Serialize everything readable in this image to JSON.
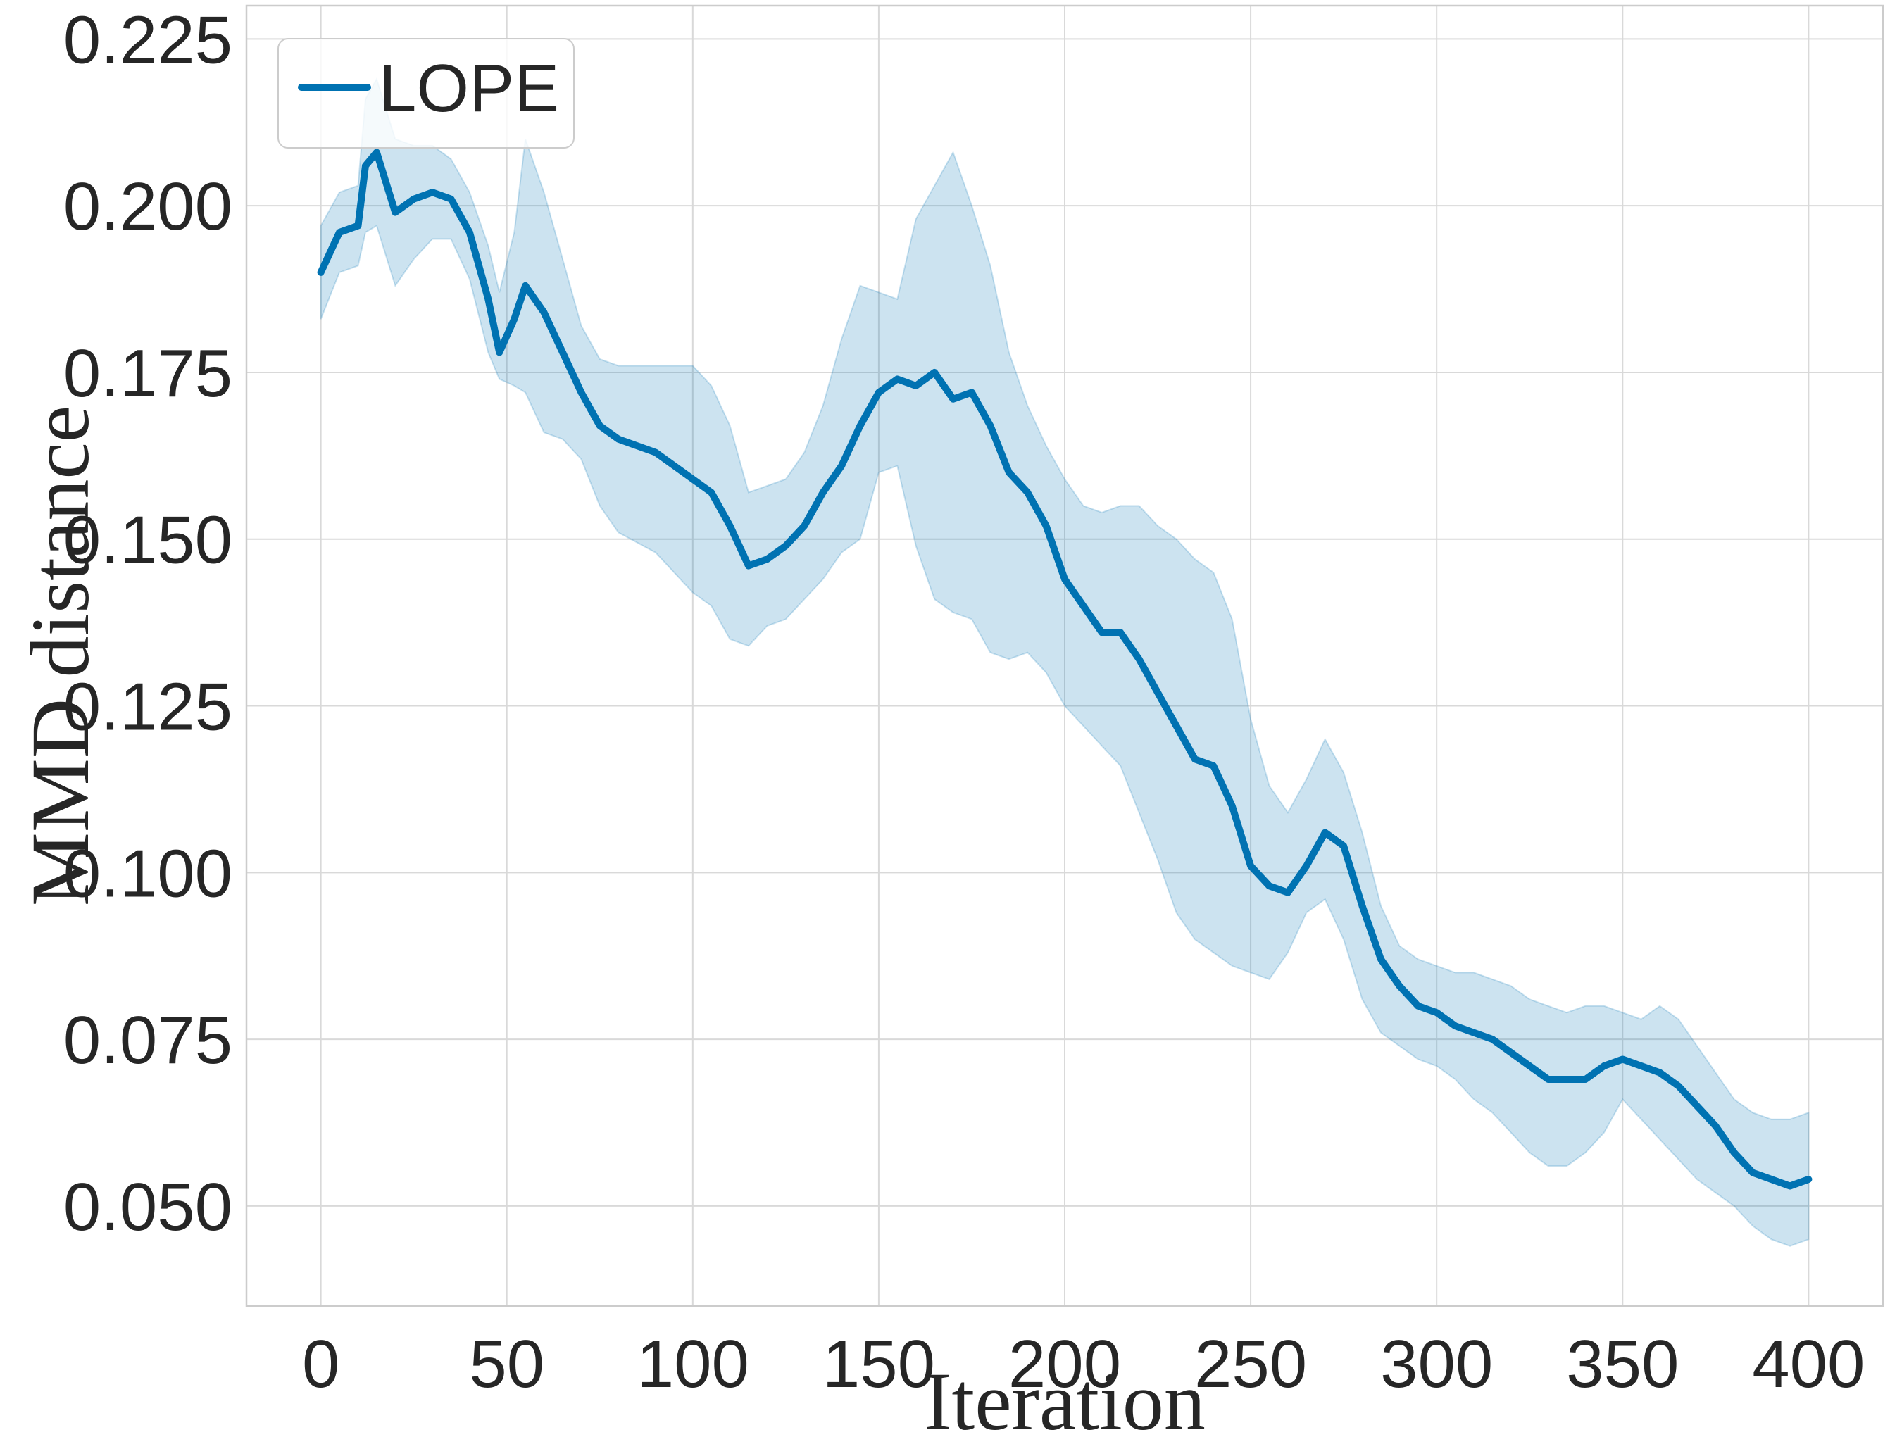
{
  "chart_data": {
    "type": "line",
    "title": "",
    "xlabel": "Iteration",
    "ylabel": "MMD distance",
    "xlim": [
      -20,
      420
    ],
    "ylim": [
      0.035,
      0.23
    ],
    "xticks": [
      0,
      50,
      100,
      150,
      200,
      250,
      300,
      350,
      400
    ],
    "xtick_labels": [
      "0",
      "50",
      "100",
      "150",
      "200",
      "250",
      "300",
      "350",
      "400"
    ],
    "yticks": [
      0.05,
      0.075,
      0.1,
      0.125,
      0.15,
      0.175,
      0.2,
      0.225
    ],
    "ytick_labels": [
      "0.050",
      "0.075",
      "0.100",
      "0.125",
      "0.150",
      "0.175",
      "0.200",
      "0.225"
    ],
    "grid": true,
    "legend": {
      "position": "top-left",
      "entries": [
        "LOPE"
      ]
    },
    "series": [
      {
        "name": "LOPE",
        "color": "#0072b2",
        "band_color": "#0072b2",
        "x": [
          0,
          5,
          10,
          12,
          15,
          20,
          25,
          30,
          35,
          40,
          45,
          48,
          52,
          55,
          60,
          65,
          70,
          75,
          80,
          90,
          100,
          105,
          110,
          115,
          120,
          125,
          130,
          135,
          140,
          145,
          150,
          155,
          160,
          165,
          170,
          175,
          180,
          185,
          190,
          195,
          200,
          205,
          210,
          215,
          220,
          225,
          230,
          235,
          240,
          245,
          250,
          255,
          260,
          265,
          270,
          275,
          280,
          285,
          290,
          295,
          300,
          305,
          310,
          315,
          320,
          325,
          330,
          335,
          340,
          345,
          350,
          355,
          360,
          365,
          370,
          375,
          380,
          385,
          390,
          395,
          400
        ],
        "values": [
          0.19,
          0.196,
          0.197,
          0.206,
          0.208,
          0.199,
          0.201,
          0.202,
          0.201,
          0.196,
          0.186,
          0.178,
          0.183,
          0.188,
          0.184,
          0.178,
          0.172,
          0.167,
          0.165,
          0.163,
          0.159,
          0.157,
          0.152,
          0.146,
          0.147,
          0.149,
          0.152,
          0.157,
          0.161,
          0.167,
          0.172,
          0.174,
          0.173,
          0.175,
          0.171,
          0.172,
          0.167,
          0.16,
          0.157,
          0.152,
          0.144,
          0.14,
          0.136,
          0.136,
          0.132,
          0.127,
          0.122,
          0.117,
          0.116,
          0.11,
          0.101,
          0.098,
          0.097,
          0.101,
          0.106,
          0.104,
          0.095,
          0.087,
          0.083,
          0.08,
          0.079,
          0.077,
          0.076,
          0.075,
          0.073,
          0.071,
          0.069,
          0.069,
          0.069,
          0.071,
          0.072,
          0.071,
          0.07,
          0.068,
          0.065,
          0.062,
          0.058,
          0.055,
          0.054,
          0.053,
          0.054
        ],
        "lower": [
          0.183,
          0.19,
          0.191,
          0.196,
          0.197,
          0.188,
          0.192,
          0.195,
          0.195,
          0.189,
          0.178,
          0.174,
          0.173,
          0.172,
          0.166,
          0.165,
          0.162,
          0.155,
          0.151,
          0.148,
          0.142,
          0.14,
          0.135,
          0.134,
          0.137,
          0.138,
          0.141,
          0.144,
          0.148,
          0.15,
          0.16,
          0.161,
          0.149,
          0.141,
          0.139,
          0.138,
          0.133,
          0.132,
          0.133,
          0.13,
          0.125,
          0.122,
          0.119,
          0.116,
          0.109,
          0.102,
          0.094,
          0.09,
          0.088,
          0.086,
          0.085,
          0.084,
          0.088,
          0.094,
          0.096,
          0.09,
          0.081,
          0.076,
          0.074,
          0.072,
          0.071,
          0.069,
          0.066,
          0.064,
          0.061,
          0.058,
          0.056,
          0.056,
          0.058,
          0.061,
          0.066,
          0.063,
          0.06,
          0.057,
          0.054,
          0.052,
          0.05,
          0.047,
          0.045,
          0.044,
          0.045
        ],
        "upper": [
          0.197,
          0.202,
          0.203,
          0.216,
          0.219,
          0.21,
          0.209,
          0.209,
          0.207,
          0.202,
          0.194,
          0.187,
          0.196,
          0.21,
          0.202,
          0.192,
          0.182,
          0.177,
          0.176,
          0.176,
          0.176,
          0.173,
          0.167,
          0.157,
          0.158,
          0.159,
          0.163,
          0.17,
          0.18,
          0.188,
          0.187,
          0.186,
          0.198,
          0.203,
          0.208,
          0.2,
          0.191,
          0.178,
          0.17,
          0.164,
          0.159,
          0.155,
          0.154,
          0.155,
          0.155,
          0.152,
          0.15,
          0.147,
          0.145,
          0.138,
          0.123,
          0.113,
          0.109,
          0.114,
          0.12,
          0.115,
          0.106,
          0.095,
          0.089,
          0.087,
          0.086,
          0.085,
          0.085,
          0.084,
          0.083,
          0.081,
          0.08,
          0.079,
          0.08,
          0.08,
          0.079,
          0.078,
          0.08,
          0.078,
          0.074,
          0.07,
          0.066,
          0.064,
          0.063,
          0.063,
          0.064
        ]
      }
    ]
  }
}
